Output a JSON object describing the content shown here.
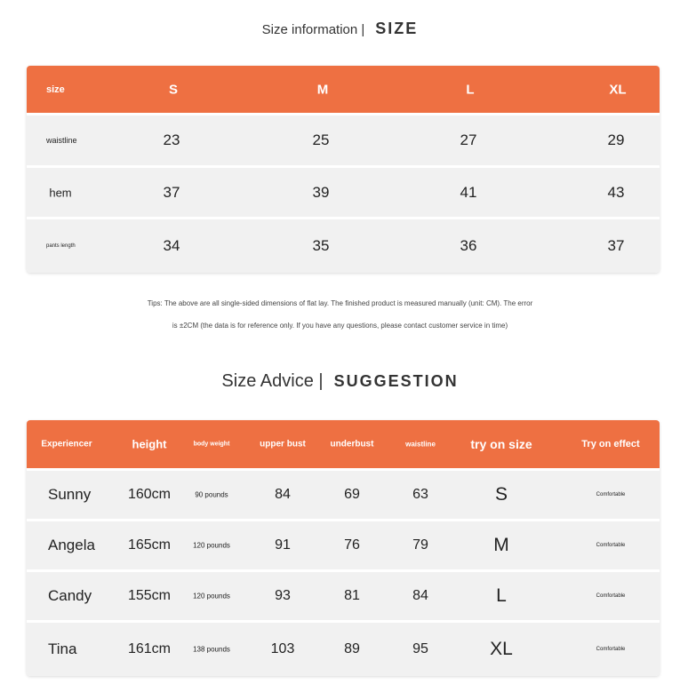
{
  "size_section": {
    "title": "Size information |",
    "title_big": "SIZE",
    "headers": [
      "size",
      "S",
      "M",
      "L",
      "XL"
    ],
    "rows": [
      {
        "label": "waistline",
        "values": [
          "23",
          "25",
          "27",
          "29"
        ]
      },
      {
        "label": "hem",
        "values": [
          "37",
          "39",
          "41",
          "43"
        ]
      },
      {
        "label": "pants length",
        "values": [
          "34",
          "35",
          "36",
          "37"
        ]
      }
    ],
    "tips_line1": "Tips: The above are all single-sided dimensions of flat lay. The finished product is measured manually (unit: CM). The error",
    "tips_line2": "is ±2CM (the data is for reference only. If you have any questions, please contact customer service in time)"
  },
  "advice_section": {
    "title": "Size Advice |",
    "title_big": "SUGGESTION",
    "headers": [
      "Experiencer",
      "height",
      "body weight",
      "upper bust",
      "underbust",
      "waistline",
      "try on size",
      "Try on effect"
    ],
    "rows": [
      [
        "Sunny",
        "160cm",
        "90 pounds",
        "84",
        "69",
        "63",
        "S",
        "Comfortable"
      ],
      [
        "Angela",
        "165cm",
        "120 pounds",
        "91",
        "76",
        "79",
        "M",
        "Comfortable"
      ],
      [
        "Candy",
        "155cm",
        "120 pounds",
        "93",
        "81",
        "84",
        "L",
        "Comfortable"
      ],
      [
        "Tina",
        "161cm",
        "138 pounds",
        "103",
        "89",
        "95",
        "XL",
        "Comfortable"
      ]
    ]
  },
  "colors": {
    "header": "#EE7042",
    "row": "#f1f1f1"
  }
}
